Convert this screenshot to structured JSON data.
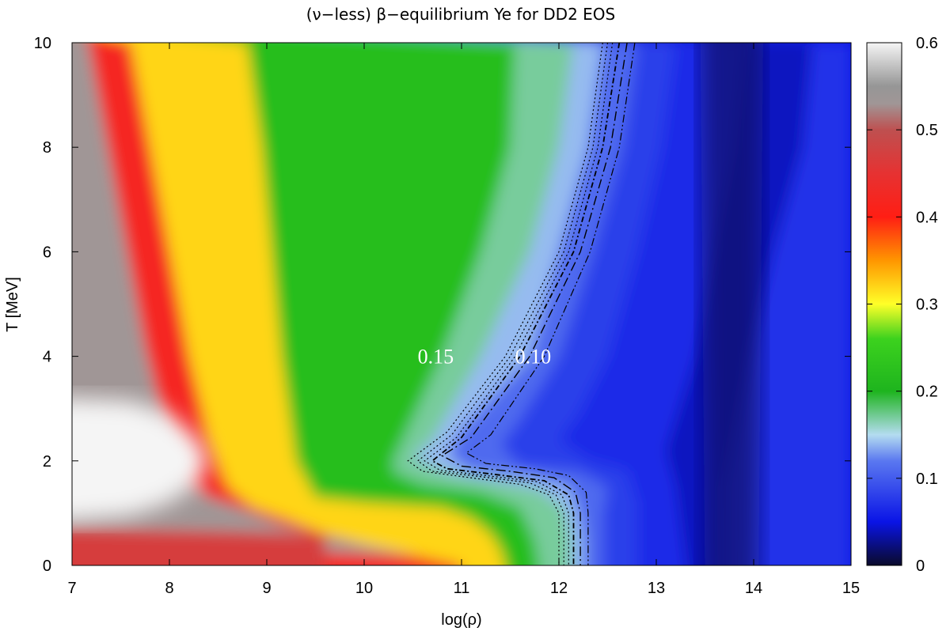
{
  "chart_data": {
    "type": "heatmap",
    "title": "(ν−less) β−equilibrium Ye for DD2 EOS",
    "xlabel": "log(ρ)",
    "ylabel": "T [MeV]",
    "xlim": [
      7,
      15
    ],
    "ylim": [
      0,
      10
    ],
    "x_ticks": [
      "7",
      "8",
      "9",
      "10",
      "11",
      "12",
      "13",
      "14",
      "15"
    ],
    "y_ticks": [
      "0",
      "2",
      "4",
      "6",
      "8",
      "10"
    ],
    "colorbar": {
      "range": [
        0,
        0.6
      ],
      "ticks": [
        "0",
        "0.1",
        "0.2",
        "0.3",
        "0.4",
        "0.5",
        "0.6"
      ],
      "stops": [
        {
          "value": 0.0,
          "color": "#0a0a2a"
        },
        {
          "value": 0.05,
          "color": "#0a14e6"
        },
        {
          "value": 0.12,
          "color": "#5a78f0"
        },
        {
          "value": 0.15,
          "color": "#b4dcf0"
        },
        {
          "value": 0.2,
          "color": "#1eb41e"
        },
        {
          "value": 0.26,
          "color": "#3cd21e"
        },
        {
          "value": 0.3,
          "color": "#ffff28"
        },
        {
          "value": 0.35,
          "color": "#ff9600"
        },
        {
          "value": 0.4,
          "color": "#ff1e14"
        },
        {
          "value": 0.45,
          "color": "#e63232"
        },
        {
          "value": 0.5,
          "color": "#be5050"
        },
        {
          "value": 0.53,
          "color": "#a09696"
        },
        {
          "value": 0.55,
          "color": "#969696"
        },
        {
          "value": 0.6,
          "color": "#f5f5f5"
        }
      ]
    },
    "field_curves": [
      {
        "ye": 0.56,
        "points": [
          [
            7,
            1.1
          ],
          [
            7.6,
            1.0
          ],
          [
            8.2,
            0.9
          ],
          [
            8.6,
            0.8
          ],
          [
            9.0,
            0.7
          ],
          [
            9.8,
            0.62
          ],
          [
            11,
            0.6
          ],
          [
            12,
            0.6
          ],
          [
            13,
            0.6
          ],
          [
            15,
            0.6
          ]
        ]
      },
      {
        "ye": 0.5,
        "points": [
          [
            7,
            0.85
          ],
          [
            7.5,
            0.8
          ],
          [
            8.0,
            0.76
          ],
          [
            8.5,
            0.72
          ],
          [
            9.0,
            0.68
          ],
          [
            10,
            0.62
          ],
          [
            11,
            0.6
          ],
          [
            12,
            0.6
          ],
          [
            13,
            0.6
          ],
          [
            15,
            0.6
          ]
        ]
      },
      {
        "ye": 0.45,
        "points": [
          [
            7,
            0.6
          ],
          [
            8.0,
            0.55
          ],
          [
            9.0,
            0.5
          ],
          [
            10,
            0.45
          ],
          [
            11,
            0.4
          ],
          [
            12,
            0.35
          ],
          [
            13,
            0.3
          ],
          [
            15,
            0.3
          ]
        ]
      },
      {
        "ye": 0.4,
        "points": [
          [
            7.6,
            10.0
          ],
          [
            7.8,
            8.0
          ],
          [
            8.0,
            6.0
          ],
          [
            8.2,
            4.0
          ],
          [
            8.4,
            2.5
          ],
          [
            8.6,
            1.5
          ],
          [
            8.85,
            1.12
          ],
          [
            9.2,
            0.9
          ],
          [
            9.6,
            0.6
          ],
          [
            10.0,
            0.4
          ],
          [
            10.5,
            0.2
          ],
          [
            11.0,
            0.0
          ]
        ]
      },
      {
        "ye": 0.3,
        "points": [
          [
            8.8,
            10.0
          ],
          [
            8.95,
            8.0
          ],
          [
            9.05,
            6.0
          ],
          [
            9.15,
            4.0
          ],
          [
            9.3,
            2.0
          ],
          [
            9.5,
            1.3
          ],
          [
            10.0,
            1.2
          ],
          [
            10.8,
            1.1
          ],
          [
            11.1,
            0.9
          ],
          [
            11.3,
            0.6
          ],
          [
            11.4,
            0.3
          ],
          [
            11.45,
            0.0
          ]
        ]
      },
      {
        "ye": 0.2,
        "points": [
          [
            11.55,
            10.0
          ],
          [
            11.5,
            8.0
          ],
          [
            11.2,
            6.0
          ],
          [
            10.8,
            4.0
          ],
          [
            10.3,
            2.0
          ],
          [
            10.3,
            1.8
          ],
          [
            10.6,
            1.55
          ],
          [
            11.2,
            1.4
          ],
          [
            11.6,
            1.1
          ],
          [
            11.75,
            0.5
          ],
          [
            11.8,
            0.0
          ]
        ]
      },
      {
        "ye": 0.15,
        "points": [
          [
            12.15,
            10.0
          ],
          [
            12.0,
            8.0
          ],
          [
            11.7,
            6.0
          ],
          [
            11.2,
            4.0
          ],
          [
            10.7,
            2.4
          ],
          [
            10.5,
            2.05
          ],
          [
            10.9,
            1.75
          ],
          [
            11.4,
            1.6
          ],
          [
            11.8,
            1.45
          ],
          [
            12.05,
            1.1
          ],
          [
            12.12,
            0.5
          ],
          [
            12.12,
            0.0
          ]
        ]
      },
      {
        "ye": 0.12,
        "points": [
          [
            12.45,
            10.0
          ],
          [
            12.3,
            8.0
          ],
          [
            12.0,
            6.0
          ],
          [
            11.7,
            4.0
          ],
          [
            11.0,
            2.6
          ],
          [
            10.85,
            2.1
          ],
          [
            11.1,
            1.8
          ],
          [
            11.7,
            1.7
          ],
          [
            12.1,
            1.5
          ],
          [
            12.2,
            1.0
          ],
          [
            12.25,
            0.5
          ],
          [
            12.25,
            0.0
          ]
        ]
      },
      {
        "ye": 0.09,
        "points": [
          [
            12.8,
            10.0
          ],
          [
            12.65,
            8.0
          ],
          [
            12.35,
            6.0
          ],
          [
            12.0,
            4.0
          ],
          [
            11.6,
            2.8
          ],
          [
            11.4,
            2.3
          ],
          [
            11.6,
            1.9
          ],
          [
            12.2,
            1.8
          ],
          [
            12.5,
            1.5
          ],
          [
            12.45,
            1.0
          ],
          [
            12.45,
            0.0
          ]
        ]
      },
      {
        "ye": 0.06,
        "points": [
          [
            13.2,
            10.0
          ],
          [
            13.05,
            8.0
          ],
          [
            12.8,
            6.0
          ],
          [
            12.5,
            4.0
          ],
          [
            12.2,
            2.9
          ],
          [
            12.0,
            2.4
          ],
          [
            12.3,
            2.0
          ],
          [
            12.7,
            1.8
          ],
          [
            12.8,
            1.2
          ],
          [
            12.8,
            0.0
          ]
        ]
      },
      {
        "ye": 0.045,
        "points": [
          [
            13.9,
            10.0
          ],
          [
            13.8,
            8.0
          ],
          [
            13.6,
            6.0
          ],
          [
            13.4,
            4.0
          ],
          [
            13.2,
            2.8
          ],
          [
            13.1,
            2.2
          ],
          [
            13.2,
            1.5
          ],
          [
            13.3,
            0.0
          ]
        ]
      },
      {
        "ye": 0.02,
        "points": [
          [
            14.6,
            10.0
          ],
          [
            14.5,
            8.0
          ],
          [
            14.2,
            6.0
          ],
          [
            13.95,
            4.0
          ],
          [
            13.8,
            2.5
          ],
          [
            13.7,
            1.5
          ],
          [
            13.7,
            0.0
          ]
        ]
      },
      {
        "ye": 0.05,
        "points": [
          [
            15.0,
            10.0
          ],
          [
            15.0,
            0.0
          ]
        ]
      }
    ],
    "white_region": [
      [
        7,
        3.2
      ],
      [
        7.6,
        3.15
      ],
      [
        8.0,
        2.9
      ],
      [
        8.3,
        2.4
      ],
      [
        8.4,
        2.0
      ],
      [
        8.3,
        1.6
      ],
      [
        8.0,
        1.2
      ],
      [
        7.6,
        0.95
      ],
      [
        7.0,
        0.85
      ]
    ],
    "contour_lines": [
      {
        "dash": "2 3",
        "width": 1.2,
        "points": [
          [
            12.45,
            10.0
          ],
          [
            12.3,
            8.0
          ],
          [
            12.0,
            6.0
          ],
          [
            11.45,
            4.0
          ],
          [
            10.85,
            2.55
          ],
          [
            10.45,
            2.0
          ],
          [
            10.6,
            1.8
          ],
          [
            11.0,
            1.7
          ],
          [
            11.6,
            1.55
          ],
          [
            11.9,
            1.35
          ],
          [
            12.0,
            1.0
          ],
          [
            12.0,
            0.0
          ]
        ]
      },
      {
        "dash": "2 3",
        "width": 1.2,
        "points": [
          [
            12.5,
            10.0
          ],
          [
            12.35,
            8.0
          ],
          [
            12.05,
            6.0
          ],
          [
            11.5,
            4.0
          ],
          [
            10.9,
            2.5
          ],
          [
            10.55,
            2.0
          ],
          [
            10.7,
            1.8
          ],
          [
            11.1,
            1.72
          ],
          [
            11.7,
            1.58
          ],
          [
            11.97,
            1.35
          ],
          [
            12.05,
            1.0
          ],
          [
            12.05,
            0.0
          ]
        ]
      },
      {
        "dash": "2 3",
        "width": 1.2,
        "points": [
          [
            12.55,
            10.0
          ],
          [
            12.4,
            8.0
          ],
          [
            12.1,
            6.0
          ],
          [
            11.55,
            4.0
          ],
          [
            10.95,
            2.45
          ],
          [
            10.62,
            2.0
          ],
          [
            10.78,
            1.82
          ],
          [
            11.2,
            1.73
          ],
          [
            11.78,
            1.6
          ],
          [
            12.03,
            1.35
          ],
          [
            12.1,
            1.0
          ],
          [
            12.1,
            0.0
          ]
        ]
      },
      {
        "dash": "7 3 2 3",
        "width": 1.8,
        "points": [
          [
            12.62,
            10.0
          ],
          [
            12.45,
            8.0
          ],
          [
            12.15,
            6.0
          ],
          [
            11.6,
            4.0
          ],
          [
            11.0,
            2.45
          ],
          [
            10.7,
            2.0
          ],
          [
            10.85,
            1.85
          ],
          [
            11.3,
            1.75
          ],
          [
            11.85,
            1.62
          ],
          [
            12.1,
            1.35
          ],
          [
            12.15,
            1.0
          ],
          [
            12.15,
            0.0
          ]
        ]
      },
      {
        "dash": "12 4 2 4",
        "width": 1.4,
        "points": [
          [
            12.7,
            10.0
          ],
          [
            12.53,
            8.0
          ],
          [
            12.22,
            6.0
          ],
          [
            11.7,
            4.0
          ],
          [
            11.1,
            2.45
          ],
          [
            10.8,
            2.1
          ],
          [
            11.0,
            1.9
          ],
          [
            11.5,
            1.8
          ],
          [
            11.95,
            1.68
          ],
          [
            12.17,
            1.4
          ],
          [
            12.22,
            1.0
          ],
          [
            12.22,
            0.0
          ]
        ]
      },
      {
        "dash": "10 3 2 3 2 3",
        "width": 1.2,
        "points": [
          [
            12.78,
            10.0
          ],
          [
            12.62,
            8.0
          ],
          [
            12.32,
            6.0
          ],
          [
            11.85,
            4.0
          ],
          [
            11.3,
            2.5
          ],
          [
            11.05,
            2.15
          ],
          [
            11.25,
            1.95
          ],
          [
            11.75,
            1.85
          ],
          [
            12.1,
            1.72
          ],
          [
            12.28,
            1.4
          ],
          [
            12.3,
            1.0
          ],
          [
            12.3,
            0.0
          ]
        ]
      }
    ],
    "contour_labels": [
      {
        "text": "0.15",
        "x": 10.55,
        "y": 4.0
      },
      {
        "text": "0.10",
        "x": 11.55,
        "y": 4.0
      }
    ]
  }
}
